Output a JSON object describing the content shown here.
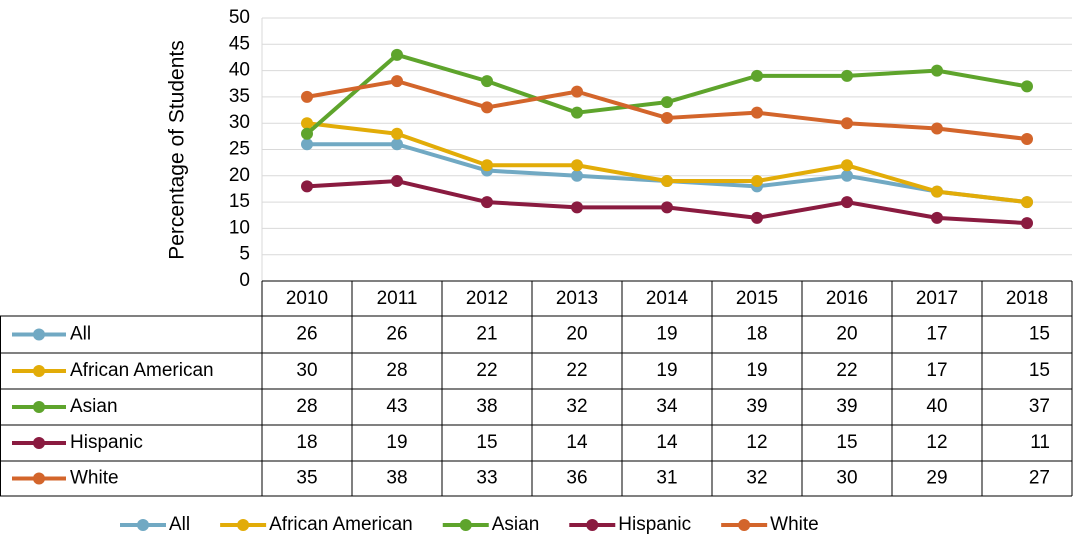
{
  "chart_data": {
    "type": "line",
    "y_axis_label": "Percentage of Students",
    "categories": [
      "2010",
      "2011",
      "2012",
      "2013",
      "2014",
      "2015",
      "2016",
      "2017",
      "2018"
    ],
    "series": [
      {
        "name": "All",
        "color": "#71a9c3",
        "values": [
          26,
          26,
          21,
          20,
          19,
          18,
          20,
          17,
          15
        ]
      },
      {
        "name": "African American",
        "color": "#e2ac08",
        "values": [
          30,
          28,
          22,
          22,
          19,
          19,
          22,
          17,
          15
        ]
      },
      {
        "name": "Asian",
        "color": "#5ea42c",
        "values": [
          28,
          43,
          38,
          32,
          34,
          39,
          39,
          40,
          37
        ]
      },
      {
        "name": "Hispanic",
        "color": "#8a1b40",
        "values": [
          18,
          19,
          15,
          14,
          14,
          12,
          15,
          12,
          11
        ]
      },
      {
        "name": "White",
        "color": "#d3652b",
        "values": [
          35,
          38,
          33,
          36,
          31,
          32,
          30,
          29,
          27
        ]
      }
    ],
    "ylim": [
      0,
      50
    ],
    "yticks": [
      0,
      5,
      10,
      15,
      20,
      25,
      30,
      35,
      40,
      45,
      50
    ],
    "grid": true,
    "legend": "bottom",
    "data_table": true
  }
}
